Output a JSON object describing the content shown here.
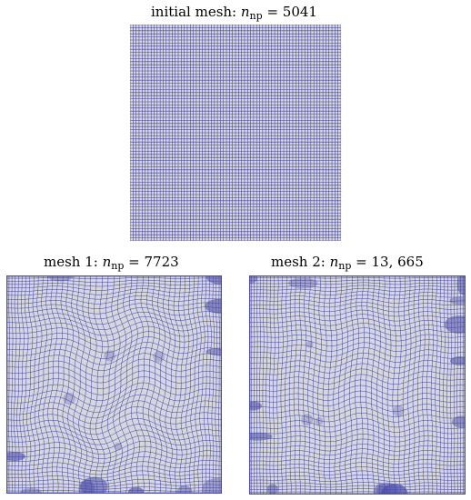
{
  "panels": [
    {
      "id": "initial",
      "caption_prefix": "initial mesh: ",
      "caption_var": "n",
      "caption_sub": "np",
      "caption_eq": " = ",
      "caption_value": "5041",
      "grid_divisions": 70,
      "mesh_type": "uniform"
    },
    {
      "id": "mesh1",
      "caption_prefix": "mesh 1: ",
      "caption_var": "n",
      "caption_sub": "np",
      "caption_eq": " = ",
      "caption_value": "7723",
      "grid_divisions": 46,
      "mesh_type": "adapted"
    },
    {
      "id": "mesh2",
      "caption_prefix": "mesh 2: ",
      "caption_var": "n",
      "caption_sub": "np",
      "caption_eq": " = ",
      "caption_value": "13, 665",
      "grid_divisions": 50,
      "mesh_type": "adapted"
    }
  ],
  "colors": {
    "mesh_line": "#3d3fa0",
    "mesh_fill": "#d6d6de",
    "dense_fill": "#4a4ca8"
  }
}
